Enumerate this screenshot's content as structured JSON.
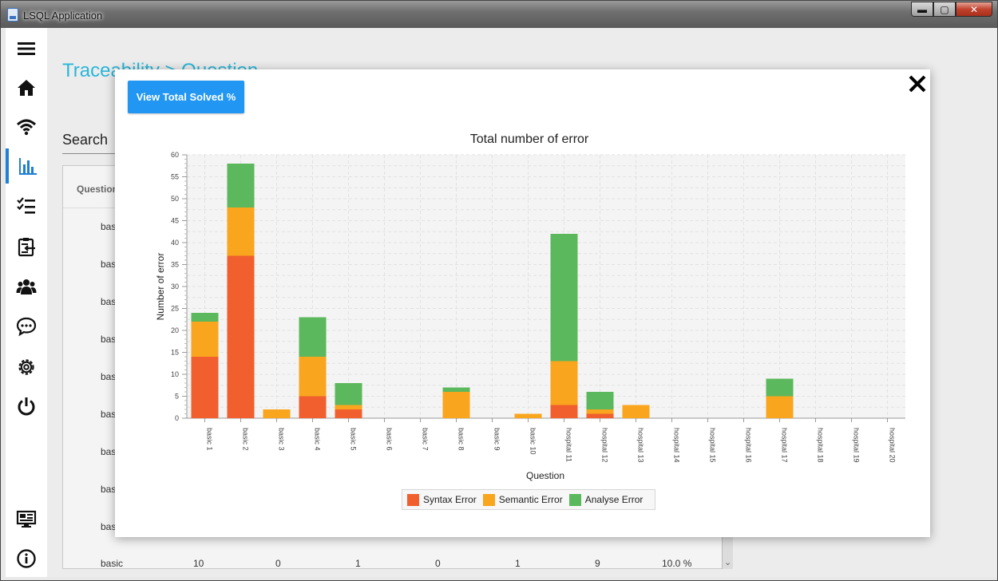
{
  "window": {
    "title": "LSQL Application",
    "min_label": "▬",
    "max_label": "▢",
    "close_label": "✕"
  },
  "sidebar": {
    "items": [
      {
        "icon": "menu-icon"
      },
      {
        "icon": "home-icon"
      },
      {
        "icon": "wifi-icon"
      },
      {
        "icon": "bar-chart-icon",
        "active": true
      },
      {
        "icon": "checklist-icon"
      },
      {
        "icon": "clipboard-icon"
      },
      {
        "icon": "users-icon"
      },
      {
        "icon": "chat-icon"
      },
      {
        "icon": "gear-icon"
      },
      {
        "icon": "power-icon"
      },
      {
        "icon": "dashboard-icon"
      },
      {
        "icon": "info-icon"
      }
    ]
  },
  "page": {
    "breadcrumb": "Traceability > Question",
    "search_label": "Search",
    "table_header": "Question",
    "rows": [
      "bas",
      "bas",
      "bas",
      "bas",
      "bas",
      "bas",
      "bas",
      "bas",
      "bas"
    ],
    "last_row": [
      "basic",
      "10",
      "0",
      "1",
      "0",
      "1",
      "9",
      "10.0 %"
    ]
  },
  "modal": {
    "button_label": "View Total Solved %"
  },
  "colors": {
    "syntax": "#f05f2d",
    "semantic": "#f9a51e",
    "analyse": "#5cb85c",
    "accent": "#2196f3"
  },
  "chart_data": {
    "type": "bar",
    "stacked": true,
    "title": "Total number of error",
    "xlabel": "Question",
    "ylabel": "Number of error",
    "ylim": [
      0,
      60
    ],
    "yticks": [
      0,
      5,
      10,
      15,
      20,
      25,
      30,
      35,
      40,
      45,
      50,
      55,
      60
    ],
    "grid": true,
    "legend_position": "bottom",
    "categories": [
      "basic 1",
      "basic 2",
      "basic 3",
      "basic 4",
      "basic 5",
      "basic 6",
      "basic 7",
      "basic 8",
      "basic 9",
      "basic 10",
      "hospital 11",
      "hospital 12",
      "hospital 13",
      "hospital 14",
      "hospital 15",
      "hospital 16",
      "hospital 17",
      "hospital 18",
      "hospital 19",
      "hospital 20"
    ],
    "series": [
      {
        "name": "Syntax Error",
        "color": "#f05f2d",
        "values": [
          14,
          37,
          0,
          5,
          2,
          0,
          0,
          0,
          0,
          0,
          3,
          1,
          0,
          0,
          0,
          0,
          0,
          0,
          0,
          0
        ]
      },
      {
        "name": "Semantic Error",
        "color": "#f9a51e",
        "values": [
          8,
          11,
          2,
          9,
          1,
          0,
          0,
          6,
          0,
          1,
          10,
          1,
          3,
          0,
          0,
          0,
          5,
          0,
          0,
          0
        ]
      },
      {
        "name": "Analyse Error",
        "color": "#5cb85c",
        "values": [
          2,
          10,
          0,
          9,
          5,
          0,
          0,
          1,
          0,
          0,
          29,
          4,
          0,
          0,
          0,
          0,
          4,
          0,
          0,
          0
        ]
      }
    ]
  }
}
